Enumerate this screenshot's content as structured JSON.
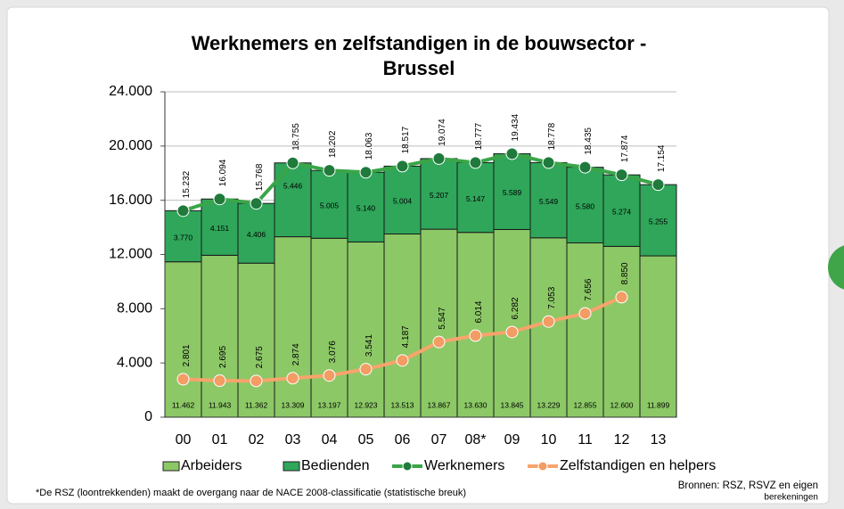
{
  "chart_data": {
    "type": "bar",
    "title": [
      "Werknemers en zelfstandigen in de bouwsector -",
      "Brussel"
    ],
    "categories": [
      "00",
      "01",
      "02",
      "03",
      "04",
      "05",
      "06",
      "07",
      "08*",
      "09",
      "10",
      "11",
      "12",
      "13"
    ],
    "ylim": [
      0,
      24000
    ],
    "yticks": [
      {
        "value": 0,
        "label": "0"
      },
      {
        "value": 4000,
        "label": "4.000"
      },
      {
        "value": 8000,
        "label": "8.000"
      },
      {
        "value": 12000,
        "label": "12.000"
      },
      {
        "value": 16000,
        "label": "16.000"
      },
      {
        "value": 20000,
        "label": "20.000"
      },
      {
        "value": 24000,
        "label": "24.000"
      }
    ],
    "grid": true,
    "legend": "bottom",
    "series": [
      {
        "name": "Arbeiders",
        "type": "bar",
        "color": "#8cc866",
        "values": [
          11462,
          11943,
          11362,
          13309,
          13197,
          12923,
          13513,
          13867,
          13630,
          13845,
          13229,
          12855,
          12600,
          11899
        ],
        "value_labels": [
          "11.462",
          "11.943",
          "11.362",
          "13.309",
          "13.197",
          "12.923",
          "13.513",
          "13.867",
          "13.630",
          "13.845",
          "13.229",
          "12.855",
          "12.600",
          "11.899"
        ]
      },
      {
        "name": "Bedienden",
        "type": "bar",
        "color": "#2fa65a",
        "values": [
          3770,
          4151,
          4406,
          5446,
          5005,
          5140,
          5004,
          5207,
          5147,
          5589,
          5549,
          5580,
          5274,
          5255
        ],
        "value_labels": [
          "3.770",
          "4.151",
          "4.406",
          "5.446",
          "5.005",
          "5.140",
          "5.004",
          "5.207",
          "5.147",
          "5.589",
          "5.549",
          "5.580",
          "5.274",
          "5.255"
        ]
      },
      {
        "name": "Werknemers",
        "type": "line",
        "color": "#3aa548",
        "marker_color": "#1f7a3c",
        "values": [
          15232,
          16094,
          15768,
          18755,
          18202,
          18063,
          18517,
          19074,
          18777,
          19434,
          18778,
          18435,
          17874,
          17154
        ],
        "value_labels": [
          "15.232",
          "16.094",
          "15.768",
          "18.755",
          "18.202",
          "18.063",
          "18.517",
          "19.074",
          "18.777",
          "19.434",
          "18.778",
          "18.435",
          "17.874",
          "17.154"
        ]
      },
      {
        "name": "Zelfstandigen en helpers",
        "type": "line",
        "color": "#f8a46c",
        "marker_color": "#f39c63",
        "values": [
          2801,
          2695,
          2675,
          2874,
          3076,
          3541,
          4187,
          5547,
          6014,
          6282,
          7053,
          7656,
          8850,
          null
        ],
        "value_labels": [
          "2.801",
          "2.695",
          "2.675",
          "2.874",
          "3.076",
          "3.541",
          "4.187",
          "5.547",
          "6.014",
          "6.282",
          "7.053",
          "7.656",
          "8.850",
          null
        ]
      }
    ],
    "footnote": "*De RSZ (loontrekkenden) maakt de overgang naar de NACE 2008-classificatie (statistische breuk)",
    "source": [
      "Bronnen: RSZ, RSVZ en eigen",
      "berekeningen"
    ]
  }
}
